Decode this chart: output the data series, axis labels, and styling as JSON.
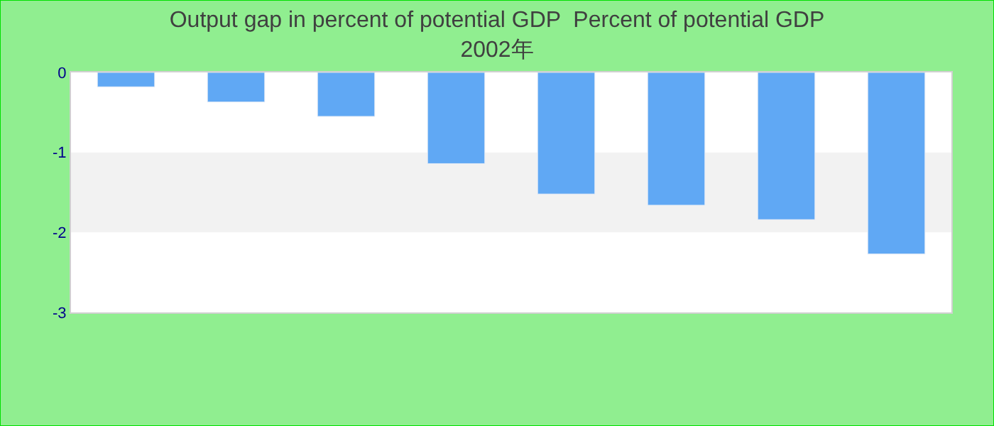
{
  "chart_data": {
    "type": "bar",
    "title": "Output gap in percent of potential GDP  Percent of potential GDP\n2002年",
    "categories": [
      null,
      null,
      null,
      null,
      null,
      null,
      null,
      null
    ],
    "values": [
      -0.18,
      -0.37,
      -0.55,
      -1.14,
      -1.52,
      -1.66,
      -1.84,
      -2.27
    ],
    "color": "#60a8f4",
    "ylim": [
      -3,
      0
    ],
    "yticks": [
      0,
      -1,
      -2,
      -3
    ],
    "bands": [
      {
        "axis": "y",
        "from": -2,
        "to": -1,
        "color": "#f2f2f2"
      }
    ]
  }
}
